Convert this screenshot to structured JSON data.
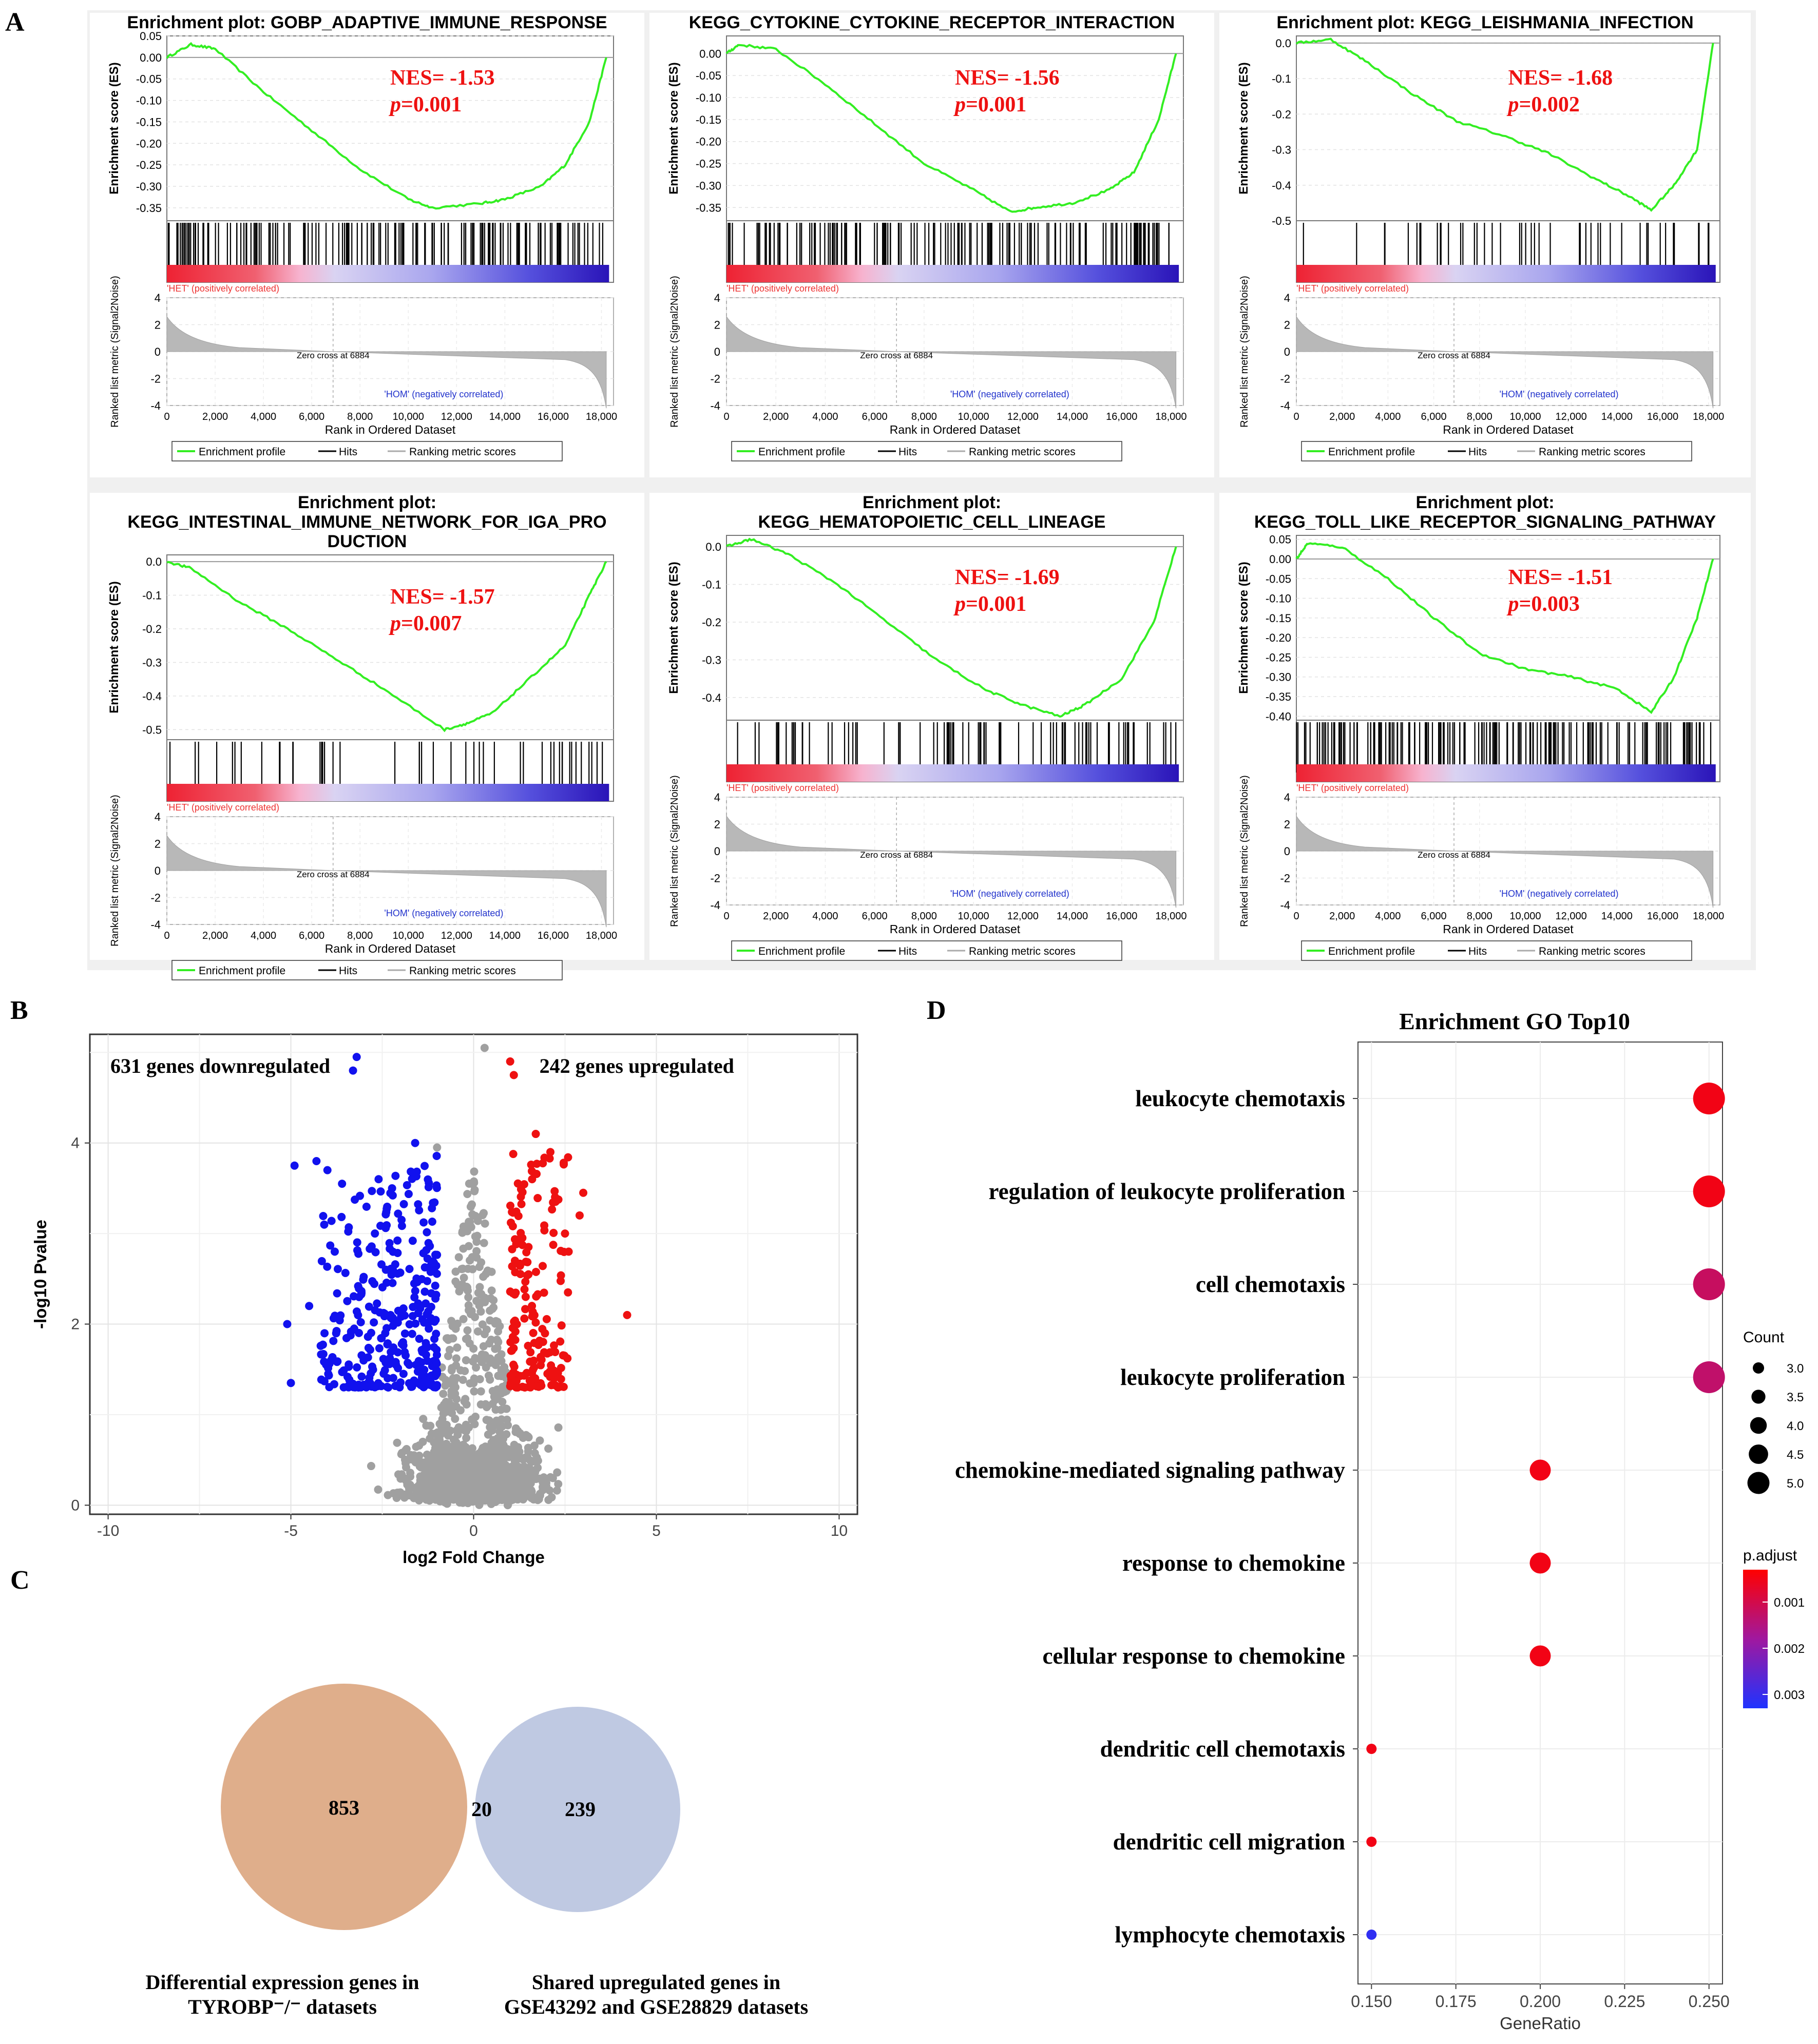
{
  "panel_labels": {
    "a": "A",
    "b": "B",
    "c": "C",
    "d": "D"
  },
  "colors": {
    "es_curve": "#33ee22",
    "nes_text": "#ee1111",
    "up": "#ee1111",
    "down": "#1111ee",
    "ns": "#a0a0a0",
    "venn_left": "#dca57e",
    "venn_right": "#a9b7d8",
    "padj_low": "#ff0000",
    "padj_high": "#1f33ff"
  },
  "gsea_common": {
    "es_axis_label": "Enrichment score (ES)",
    "metric_axis_label": "Ranked list metric (Signal2Noise)",
    "x_axis_label": "Rank in Ordered Dataset",
    "x_ticks": [
      "0",
      "2,000",
      "4,000",
      "6,000",
      "8,000",
      "10,000",
      "12,000",
      "14,000",
      "16,000",
      "18,000"
    ],
    "metric_ticks": [
      "4",
      "2",
      "0",
      "-2",
      "-4"
    ],
    "het_label": "'HET' (positively correlated)",
    "hom_label": "'HOM' (negatively correlated)",
    "zero_cross": "Zero cross at 6884",
    "legend": [
      "Enrichment profile",
      "Hits",
      "Ranking metric scores"
    ]
  },
  "chart_data": [
    {
      "type": "line",
      "panel": "A",
      "title": "Enrichment plot: GOBP_ADAPTIVE_IMMUNE_RESPONSE",
      "nes": "NES= -1.53",
      "p": "=0.001",
      "es_ticks": [
        "0.05",
        "0.00",
        "-0.05",
        "-0.10",
        "-0.15",
        "-0.20",
        "-0.25",
        "-0.30",
        "-0.35"
      ],
      "ylim": [
        -0.38,
        0.05
      ],
      "es_curve": [
        [
          0,
          0.0
        ],
        [
          1000,
          0.03
        ],
        [
          2000,
          0.02
        ],
        [
          4000,
          -0.08
        ],
        [
          6000,
          -0.17
        ],
        [
          8000,
          -0.26
        ],
        [
          10000,
          -0.33
        ],
        [
          11000,
          -0.35
        ],
        [
          13000,
          -0.34
        ],
        [
          14000,
          -0.33
        ],
        [
          15500,
          -0.3
        ],
        [
          16500,
          -0.25
        ],
        [
          17500,
          -0.15
        ],
        [
          18200,
          0.0
        ]
      ],
      "hit_density": "dense"
    },
    {
      "type": "line",
      "panel": "A",
      "title": "KEGG_CYTOKINE_CYTOKINE_RECEPTOR_INTERACTION",
      "nes": "NES= -1.56",
      "p": "=0.001",
      "es_ticks": [
        "0.00",
        "-0.05",
        "-0.10",
        "-0.15",
        "-0.20",
        "-0.25",
        "-0.30",
        "-0.35"
      ],
      "ylim": [
        -0.38,
        0.04
      ],
      "es_curve": [
        [
          0,
          0.0
        ],
        [
          500,
          0.02
        ],
        [
          2000,
          0.01
        ],
        [
          4000,
          -0.07
        ],
        [
          6000,
          -0.16
        ],
        [
          8000,
          -0.25
        ],
        [
          10000,
          -0.31
        ],
        [
          11500,
          -0.36
        ],
        [
          12500,
          -0.35
        ],
        [
          14000,
          -0.34
        ],
        [
          15500,
          -0.31
        ],
        [
          16500,
          -0.27
        ],
        [
          17500,
          -0.15
        ],
        [
          18200,
          0.0
        ]
      ],
      "hit_density": "dense"
    },
    {
      "type": "line",
      "panel": "A",
      "title": "Enrichment plot: KEGG_LEISHMANIA_INFECTION",
      "nes": "NES= -1.68",
      "p": "=0.002",
      "es_ticks": [
        "0.0",
        "-0.1",
        "-0.2",
        "-0.3",
        "-0.4",
        "-0.5"
      ],
      "ylim": [
        -0.5,
        0.02
      ],
      "es_curve": [
        [
          0,
          0.0
        ],
        [
          1500,
          0.01
        ],
        [
          3000,
          -0.05
        ],
        [
          5000,
          -0.14
        ],
        [
          7000,
          -0.22
        ],
        [
          9000,
          -0.26
        ],
        [
          11000,
          -0.31
        ],
        [
          13000,
          -0.38
        ],
        [
          14500,
          -0.43
        ],
        [
          15500,
          -0.47
        ],
        [
          16500,
          -0.4
        ],
        [
          17500,
          -0.3
        ],
        [
          18200,
          0.0
        ]
      ],
      "hit_density": "sparse"
    },
    {
      "type": "line",
      "panel": "A",
      "title": "Enrichment plot: KEGG_INTESTINAL_IMMUNE_NETWORK_FOR_IGA_PRO DUCTION",
      "nes": "NES= -1.57",
      "p": "=0.007",
      "es_ticks": [
        "0.0",
        "-0.1",
        "-0.2",
        "-0.3",
        "-0.4",
        "-0.5"
      ],
      "ylim": [
        -0.53,
        0.02
      ],
      "es_curve": [
        [
          0,
          0.0
        ],
        [
          1000,
          -0.02
        ],
        [
          3000,
          -0.12
        ],
        [
          5000,
          -0.2
        ],
        [
          7000,
          -0.29
        ],
        [
          9000,
          -0.38
        ],
        [
          11500,
          -0.5
        ],
        [
          12500,
          -0.48
        ],
        [
          13500,
          -0.45
        ],
        [
          15000,
          -0.35
        ],
        [
          16500,
          -0.25
        ],
        [
          17500,
          -0.1
        ],
        [
          18200,
          0.0
        ]
      ],
      "hit_density": "sparse"
    },
    {
      "type": "line",
      "panel": "A",
      "title": "Enrichment plot: KEGG_HEMATOPOIETIC_CELL_LINEAGE",
      "nes": "NES= -1.69",
      "p": "=0.001",
      "es_ticks": [
        "0.0",
        "-0.1",
        "-0.2",
        "-0.3",
        "-0.4"
      ],
      "ylim": [
        -0.46,
        0.03
      ],
      "es_curve": [
        [
          0,
          0.0
        ],
        [
          1000,
          0.02
        ],
        [
          2500,
          -0.02
        ],
        [
          4500,
          -0.1
        ],
        [
          6500,
          -0.2
        ],
        [
          8500,
          -0.3
        ],
        [
          10500,
          -0.38
        ],
        [
          12000,
          -0.42
        ],
        [
          13500,
          -0.45
        ],
        [
          14500,
          -0.42
        ],
        [
          16000,
          -0.35
        ],
        [
          17300,
          -0.2
        ],
        [
          18200,
          0.0
        ]
      ],
      "hit_density": "medium"
    },
    {
      "type": "line",
      "panel": "A",
      "title": "Enrichment plot: KEGG_TOLL_LIKE_RECEPTOR_SIGNALING_PATHWAY",
      "nes": "NES= -1.51",
      "p": "=0.003",
      "es_ticks": [
        "0.05",
        "0.00",
        "-0.05",
        "-0.10",
        "-0.15",
        "-0.20",
        "-0.25",
        "-0.30",
        "-0.35",
        "-0.40"
      ],
      "ylim": [
        -0.41,
        0.06
      ],
      "es_curve": [
        [
          0,
          0.0
        ],
        [
          500,
          0.04
        ],
        [
          2000,
          0.03
        ],
        [
          4000,
          -0.05
        ],
        [
          6000,
          -0.15
        ],
        [
          8000,
          -0.24
        ],
        [
          10000,
          -0.28
        ],
        [
          12000,
          -0.3
        ],
        [
          14000,
          -0.33
        ],
        [
          15500,
          -0.39
        ],
        [
          16500,
          -0.3
        ],
        [
          17500,
          -0.15
        ],
        [
          18200,
          0.0
        ]
      ],
      "hit_density": "dense"
    },
    {
      "type": "scatter",
      "panel": "B",
      "xlabel": "log2 Fold Change",
      "ylabel": "-log10 Pvalue",
      "xlim": [
        -10.5,
        10.5
      ],
      "ylim": [
        -0.1,
        5.2
      ],
      "x_ticks": [
        "-10",
        "-5",
        "0",
        "5",
        "10"
      ],
      "y_ticks": [
        "0",
        "2",
        "4"
      ],
      "annotation_down": "631 genes downregulated",
      "annotation_up": "242 genes upregulated",
      "down_count": 631,
      "up_count": 242,
      "highlight_points": [
        [
          -3.2,
          4.95
        ],
        [
          -3.3,
          4.8
        ],
        [
          -4.3,
          3.8
        ],
        [
          -4.0,
          3.7
        ],
        [
          -4.9,
          3.75
        ],
        [
          -2.6,
          3.6
        ],
        [
          -3.6,
          3.55
        ],
        [
          -1.6,
          4.0
        ],
        [
          -1.0,
          3.95
        ],
        [
          -5.1,
          2.0
        ],
        [
          -4.5,
          2.2
        ],
        [
          -5.0,
          1.35
        ],
        [
          -3.8,
          2.8
        ],
        [
          -2.4,
          2.6
        ],
        [
          1.0,
          4.9
        ],
        [
          1.1,
          4.75
        ],
        [
          1.7,
          4.1
        ],
        [
          2.1,
          3.9
        ],
        [
          3.0,
          3.45
        ],
        [
          2.6,
          2.8
        ],
        [
          2.9,
          3.2
        ],
        [
          4.2,
          2.1
        ],
        [
          2.5,
          3.0
        ],
        [
          1.6,
          3.6
        ],
        [
          2.2,
          1.4
        ],
        [
          1.4,
          1.3
        ]
      ]
    },
    {
      "type": "venn",
      "panel": "C",
      "sets": [
        {
          "label_lines": [
            "Differential expression genes in",
            "TYROBP⁻/⁻ datasets"
          ],
          "only": 853
        },
        {
          "label_lines": [
            "Shared upregulated genes in",
            "GSE43292 and GSE28829 datasets"
          ],
          "only": 239
        }
      ],
      "intersection": 20
    },
    {
      "type": "scatter",
      "panel": "D",
      "title": "Enrichment GO Top10",
      "xlabel": "GeneRatio",
      "x_ticks": [
        "0.150",
        "0.175",
        "0.200",
        "0.225",
        "0.250"
      ],
      "xlim": [
        0.146,
        0.254
      ],
      "categories": [
        "leukocyte chemotaxis",
        "regulation of leukocyte proliferation",
        "cell chemotaxis",
        "leukocyte proliferation",
        "chemokine-mediated signaling pathway",
        "response to chemokine",
        "cellular response to chemokine",
        "dendritic cell chemotaxis",
        "dendritic cell migration",
        "lymphocyte chemotaxis"
      ],
      "gene_ratio": [
        0.25,
        0.25,
        0.25,
        0.25,
        0.2,
        0.2,
        0.2,
        0.15,
        0.15,
        0.15
      ],
      "count": [
        5,
        5,
        5,
        5,
        4,
        4,
        4,
        3,
        3,
        3
      ],
      "p_adjust": [
        0.0005,
        0.0005,
        0.0012,
        0.0013,
        0.0005,
        0.0005,
        0.0005,
        0.0005,
        0.0005,
        0.0031
      ],
      "legend_count": {
        "title": "Count",
        "values": [
          "3.0",
          "3.5",
          "4.0",
          "4.5",
          "5.0"
        ]
      },
      "legend_padj": {
        "title": "p.adjust",
        "ticks": [
          "0.001",
          "0.002",
          "0.003"
        ],
        "range": [
          0.0003,
          0.0033
        ]
      }
    }
  ]
}
